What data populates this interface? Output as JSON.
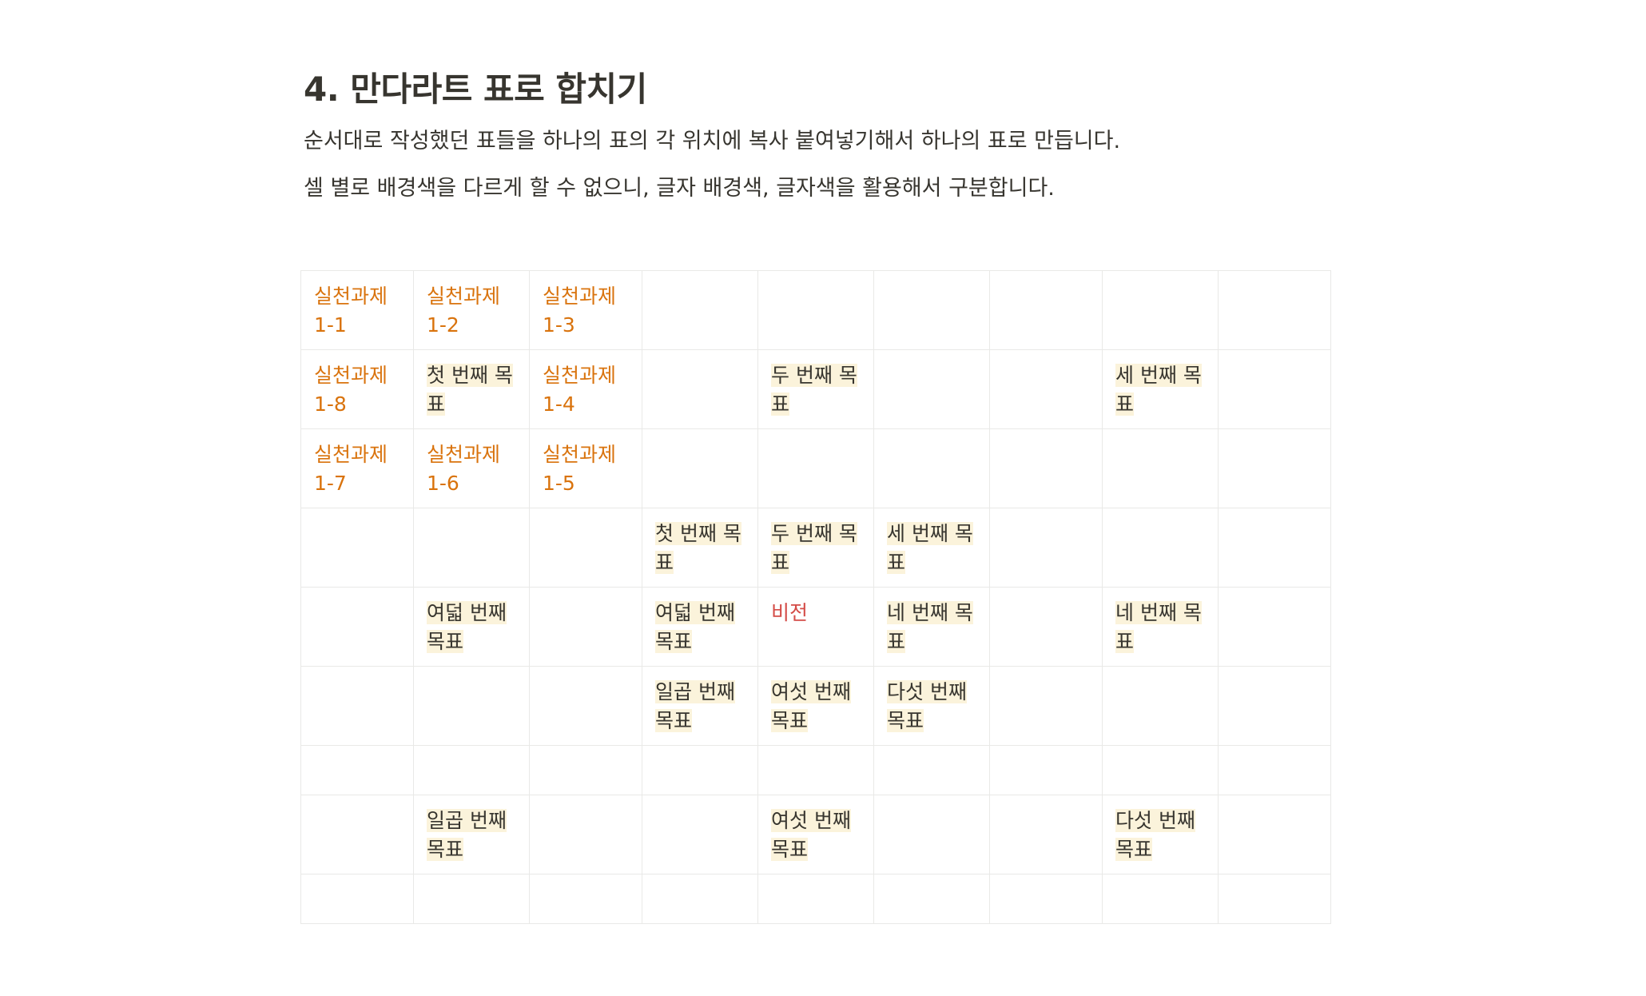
{
  "heading": "4. 만다라트 표로 합치기",
  "paragraphs": [
    "순서대로 작성했던 표들을 하나의 표의 각 위치에 복사 붙여넣기해서 하나의 표로 만듭니다.",
    "셀 별로 배경색을 다르게 할 수 없으니, 글자 배경색, 글자색을 활용해서 구분합니다."
  ],
  "colors": {
    "text": "#37352f",
    "task": "#d9730d",
    "goal_background": "#fbf3db",
    "vision": "#d44c47",
    "grid_border": "#e9e9e7"
  },
  "grid": {
    "rows": [
      [
        {
          "text": "실천과제 1-1",
          "style": "task"
        },
        {
          "text": "실천과제 1-2",
          "style": "task"
        },
        {
          "text": "실천과제 1-3",
          "style": "task"
        },
        {
          "text": "",
          "style": "empty"
        },
        {
          "text": "",
          "style": "empty"
        },
        {
          "text": "",
          "style": "empty"
        },
        {
          "text": "",
          "style": "empty"
        },
        {
          "text": "",
          "style": "empty"
        },
        {
          "text": "",
          "style": "empty"
        }
      ],
      [
        {
          "text": "실천과제 1-8",
          "style": "task"
        },
        {
          "text": "첫 번째 목표",
          "style": "goal"
        },
        {
          "text": "실천과제 1-4",
          "style": "task"
        },
        {
          "text": "",
          "style": "empty"
        },
        {
          "text": "두 번째 목표",
          "style": "goal"
        },
        {
          "text": "",
          "style": "empty"
        },
        {
          "text": "",
          "style": "empty"
        },
        {
          "text": "세 번째 목표",
          "style": "goal"
        },
        {
          "text": "",
          "style": "empty"
        }
      ],
      [
        {
          "text": "실천과제 1-7",
          "style": "task"
        },
        {
          "text": "실천과제 1-6",
          "style": "task"
        },
        {
          "text": "실천과제 1-5",
          "style": "task"
        },
        {
          "text": "",
          "style": "empty"
        },
        {
          "text": "",
          "style": "empty"
        },
        {
          "text": "",
          "style": "empty"
        },
        {
          "text": "",
          "style": "empty"
        },
        {
          "text": "",
          "style": "empty"
        },
        {
          "text": "",
          "style": "empty"
        }
      ],
      [
        {
          "text": "",
          "style": "empty"
        },
        {
          "text": "",
          "style": "empty"
        },
        {
          "text": "",
          "style": "empty"
        },
        {
          "text": "첫 번째 목표",
          "style": "goal"
        },
        {
          "text": "두 번째 목표",
          "style": "goal"
        },
        {
          "text": "세 번째 목표",
          "style": "goal"
        },
        {
          "text": "",
          "style": "empty"
        },
        {
          "text": "",
          "style": "empty"
        },
        {
          "text": "",
          "style": "empty"
        }
      ],
      [
        {
          "text": "",
          "style": "empty"
        },
        {
          "text": "여덟 번째 목표",
          "style": "goal-words"
        },
        {
          "text": "",
          "style": "empty"
        },
        {
          "text": "여덟 번째 목표",
          "style": "goal-words"
        },
        {
          "text": "비전",
          "style": "vision"
        },
        {
          "text": "네 번째 목표",
          "style": "goal"
        },
        {
          "text": "",
          "style": "empty"
        },
        {
          "text": "네 번째 목표",
          "style": "goal"
        },
        {
          "text": "",
          "style": "empty"
        }
      ],
      [
        {
          "text": "",
          "style": "empty"
        },
        {
          "text": "",
          "style": "empty"
        },
        {
          "text": "",
          "style": "empty"
        },
        {
          "text": "일곱 번째 목표",
          "style": "goal-words"
        },
        {
          "text": "여섯 번째 목표",
          "style": "goal-words"
        },
        {
          "text": "다섯 번째 목표",
          "style": "goal-words"
        },
        {
          "text": "",
          "style": "empty"
        },
        {
          "text": "",
          "style": "empty"
        },
        {
          "text": "",
          "style": "empty"
        }
      ],
      [
        {
          "text": "",
          "style": "empty"
        },
        {
          "text": "",
          "style": "empty"
        },
        {
          "text": "",
          "style": "empty"
        },
        {
          "text": "",
          "style": "empty"
        },
        {
          "text": "",
          "style": "empty"
        },
        {
          "text": "",
          "style": "empty"
        },
        {
          "text": "",
          "style": "empty"
        },
        {
          "text": "",
          "style": "empty"
        },
        {
          "text": "",
          "style": "empty"
        }
      ],
      [
        {
          "text": "",
          "style": "empty"
        },
        {
          "text": "일곱 번째 목표",
          "style": "goal-words"
        },
        {
          "text": "",
          "style": "empty"
        },
        {
          "text": "",
          "style": "empty"
        },
        {
          "text": "여섯 번째 목표",
          "style": "goal-words"
        },
        {
          "text": "",
          "style": "empty"
        },
        {
          "text": "",
          "style": "empty"
        },
        {
          "text": "다섯 번째 목표",
          "style": "goal-words"
        },
        {
          "text": "",
          "style": "empty"
        }
      ],
      [
        {
          "text": "",
          "style": "empty"
        },
        {
          "text": "",
          "style": "empty"
        },
        {
          "text": "",
          "style": "empty"
        },
        {
          "text": "",
          "style": "empty"
        },
        {
          "text": "",
          "style": "empty"
        },
        {
          "text": "",
          "style": "empty"
        },
        {
          "text": "",
          "style": "empty"
        },
        {
          "text": "",
          "style": "empty"
        },
        {
          "text": "",
          "style": "empty"
        }
      ]
    ]
  }
}
